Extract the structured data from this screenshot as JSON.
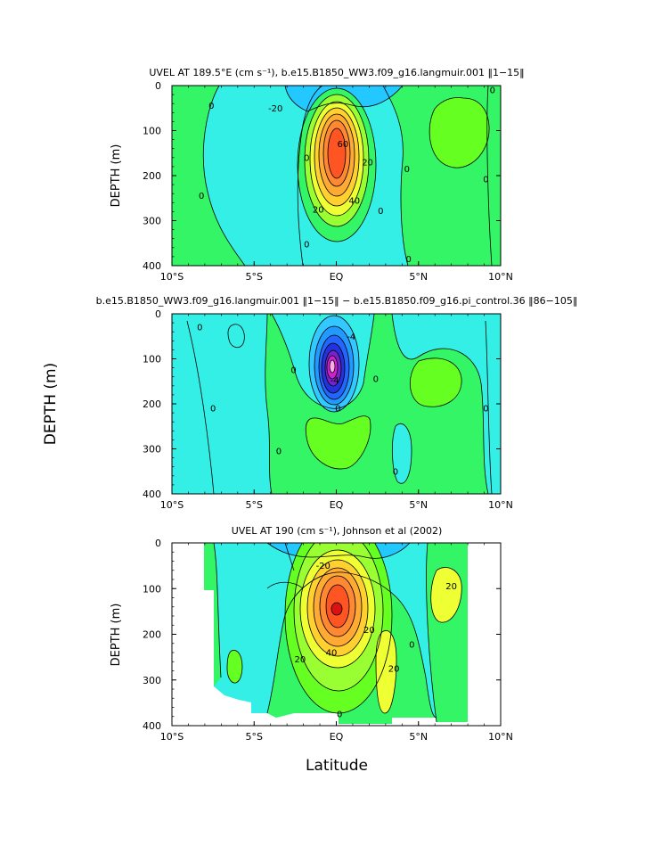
{
  "figure": {
    "x_label": "Latitude",
    "side_label": "DEPTH (m)"
  },
  "panels": [
    {
      "title": "UVEL AT 189.5°E (cm s⁻¹), b.e15.B1850_WW3.f09_g16.langmuir.001 ‖1−15‖",
      "ylabel": "DEPTH (m)"
    },
    {
      "title": "b.e15.B1850_WW3.f09_g16.langmuir.001 ‖1−15‖ − b.e15.B1850.f09_g16.pi_control.36 ‖86−105‖",
      "ylabel": ""
    },
    {
      "title": "UVEL AT 190 (cm s⁻¹), Johnson et al (2002)",
      "ylabel": "DEPTH (m)"
    }
  ],
  "chart_data": [
    {
      "type": "heatmap",
      "title": "UVEL AT 189.5°E (cm s⁻¹), b.e15.B1850_WW3.f09_g16.langmuir.001 ‖1−15‖",
      "xlabel": "",
      "ylabel": "DEPTH (m)",
      "x_ticks": [
        "10°S",
        "5°S",
        "EQ",
        "5°N",
        "10°N"
      ],
      "y_ticks": [
        "0",
        "100",
        "200",
        "300",
        "400"
      ],
      "xlim": [
        -10,
        10
      ],
      "ylim": [
        400,
        0
      ],
      "contour_labels": [
        {
          "text": "0",
          "lat": -7.6,
          "depth": 45
        },
        {
          "text": "-20",
          "lat": -3.7,
          "depth": 50
        },
        {
          "text": "0",
          "lat": -8.2,
          "depth": 245
        },
        {
          "text": "60",
          "lat": 0.4,
          "depth": 130
        },
        {
          "text": "20",
          "lat": 1.9,
          "depth": 170
        },
        {
          "text": "40",
          "lat": 1.1,
          "depth": 255
        },
        {
          "text": "20",
          "lat": -1.1,
          "depth": 275
        },
        {
          "text": "0",
          "lat": 2.7,
          "depth": 278
        },
        {
          "text": "0",
          "lat": -1.8,
          "depth": 160
        },
        {
          "text": "0",
          "lat": 4.3,
          "depth": 185
        },
        {
          "text": "0",
          "lat": -1.8,
          "depth": 352
        },
        {
          "text": "0",
          "lat": 4.4,
          "depth": 385
        },
        {
          "text": "0",
          "lat": 9.5,
          "depth": 10
        },
        {
          "text": "0",
          "lat": 9.1,
          "depth": 208
        }
      ]
    },
    {
      "type": "heatmap",
      "title": "b.e15.B1850_WW3.f09_g16.langmuir.001 ‖1−15‖ − b.e15.B1850.f09_g16.pi_control.36 ‖86−105‖",
      "xlabel": "",
      "ylabel": "",
      "x_ticks": [
        "10°S",
        "5°S",
        "EQ",
        "5°N",
        "10°N"
      ],
      "y_ticks": [
        "0",
        "100",
        "200",
        "300",
        "400"
      ],
      "xlim": [
        -10,
        10
      ],
      "ylim": [
        400,
        0
      ],
      "contour_labels": [
        {
          "text": "0",
          "lat": -8.3,
          "depth": 30
        },
        {
          "text": "-4",
          "lat": 0.9,
          "depth": 50
        },
        {
          "text": "-4",
          "lat": -0.1,
          "depth": 148
        },
        {
          "text": "0",
          "lat": -2.6,
          "depth": 125
        },
        {
          "text": "0",
          "lat": 2.4,
          "depth": 145
        },
        {
          "text": "0",
          "lat": -7.5,
          "depth": 210
        },
        {
          "text": "0",
          "lat": 0.1,
          "depth": 210
        },
        {
          "text": "0",
          "lat": -3.5,
          "depth": 305
        },
        {
          "text": "0",
          "lat": 3.6,
          "depth": 350
        },
        {
          "text": "0",
          "lat": 9.1,
          "depth": 210
        }
      ]
    },
    {
      "type": "heatmap",
      "title": "UVEL AT 190 (cm s⁻¹), Johnson et al (2002)",
      "xlabel": "Latitude",
      "ylabel": "DEPTH (m)",
      "x_ticks": [
        "10°S",
        "5°S",
        "EQ",
        "5°N",
        "10°N"
      ],
      "y_ticks": [
        "0",
        "100",
        "200",
        "300",
        "400"
      ],
      "xlim": [
        -10,
        10
      ],
      "ylim": [
        400,
        0
      ],
      "data_extent_lat": [
        -8,
        8
      ],
      "contour_labels": [
        {
          "text": "-20",
          "lat": -0.8,
          "depth": 50
        },
        {
          "text": "20",
          "lat": 7.0,
          "depth": 95
        },
        {
          "text": "20",
          "lat": 2.0,
          "depth": 190
        },
        {
          "text": "40",
          "lat": -0.3,
          "depth": 240
        },
        {
          "text": "20",
          "lat": -2.2,
          "depth": 255
        },
        {
          "text": "20",
          "lat": 3.5,
          "depth": 275
        },
        {
          "text": "0",
          "lat": 4.6,
          "depth": 222
        },
        {
          "text": "0",
          "lat": 0.2,
          "depth": 375
        }
      ]
    }
  ]
}
